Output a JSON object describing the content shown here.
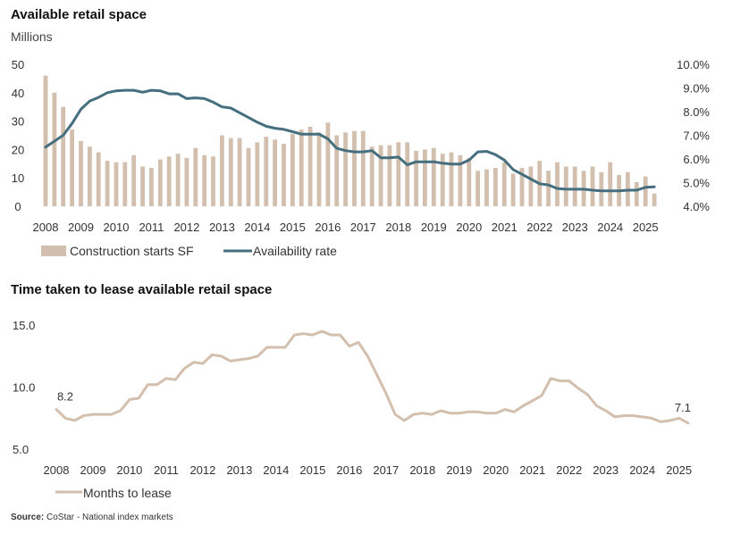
{
  "chart_data": [
    {
      "type": "bar+line",
      "title": "Available retail space",
      "ylabel_left": "Millions",
      "ylim_left": [
        0,
        50
      ],
      "yticks_left": [
        "50",
        "40",
        "30",
        "20",
        "10",
        "0"
      ],
      "ylim_right": [
        4.0,
        10.0
      ],
      "yticks_right": [
        "10.0%",
        "9.0%",
        "8.0%",
        "7.0%",
        "6.0%",
        "5.0%",
        "4.0%"
      ],
      "x_tick_labels": [
        "2008",
        "2009",
        "2010",
        "2011",
        "2012",
        "2013",
        "2014",
        "2015",
        "2016",
        "2017",
        "2018",
        "2019",
        "2020",
        "2021",
        "2022",
        "2023",
        "2024",
        "2025"
      ],
      "x_range": [
        2008.0,
        2025.35
      ],
      "series": [
        {
          "name": "Construction starts SF",
          "kind": "bar",
          "color": "#d3bfae",
          "x": [
            2008.0,
            2008.25,
            2008.5,
            2008.75,
            2009.0,
            2009.25,
            2009.5,
            2009.75,
            2010.0,
            2010.25,
            2010.5,
            2010.75,
            2011.0,
            2011.25,
            2011.5,
            2011.75,
            2012.0,
            2012.25,
            2012.5,
            2012.75,
            2013.0,
            2013.25,
            2013.5,
            2013.75,
            2014.0,
            2014.25,
            2014.5,
            2014.75,
            2015.0,
            2015.25,
            2015.5,
            2015.75,
            2016.0,
            2016.25,
            2016.5,
            2016.75,
            2017.0,
            2017.25,
            2017.5,
            2017.75,
            2018.0,
            2018.25,
            2018.5,
            2018.75,
            2019.0,
            2019.25,
            2019.5,
            2019.75,
            2020.0,
            2020.25,
            2020.5,
            2020.75,
            2021.0,
            2021.25,
            2021.5,
            2021.75,
            2022.0,
            2022.25,
            2022.5,
            2022.75,
            2023.0,
            2023.25,
            2023.5,
            2023.75,
            2024.0,
            2024.25,
            2024.5,
            2024.75,
            2025.0,
            2025.25
          ],
          "values": [
            46,
            40,
            35,
            27,
            23,
            21,
            19,
            16,
            15.5,
            15.5,
            18,
            14,
            13.5,
            16.5,
            17.5,
            18.5,
            17,
            20.5,
            18,
            17.5,
            25,
            24,
            24,
            20.5,
            22.5,
            24.5,
            23.5,
            22,
            25.5,
            27,
            28,
            26,
            29.5,
            25,
            26,
            26.5,
            26.5,
            21,
            21.5,
            21.5,
            22.5,
            22.5,
            19.5,
            20,
            20.5,
            18.5,
            19,
            18,
            17,
            12.5,
            13,
            13.5,
            15.5,
            11.5,
            13.5,
            14,
            16,
            12.5,
            15.5,
            14,
            14,
            12.5,
            14,
            12,
            15.5,
            11,
            12,
            8.5,
            10.5,
            4.5
          ]
        },
        {
          "name": "Availability rate",
          "kind": "line",
          "color": "#456f7f",
          "x": [
            2008.0,
            2008.25,
            2008.5,
            2008.75,
            2009.0,
            2009.25,
            2009.5,
            2009.75,
            2010.0,
            2010.25,
            2010.5,
            2010.75,
            2011.0,
            2011.25,
            2011.5,
            2011.75,
            2012.0,
            2012.25,
            2012.5,
            2012.75,
            2013.0,
            2013.25,
            2013.5,
            2013.75,
            2014.0,
            2014.25,
            2014.5,
            2014.75,
            2015.0,
            2015.25,
            2015.5,
            2015.75,
            2016.0,
            2016.25,
            2016.5,
            2016.75,
            2017.0,
            2017.25,
            2017.5,
            2017.75,
            2018.0,
            2018.25,
            2018.5,
            2018.75,
            2019.0,
            2019.25,
            2019.5,
            2019.75,
            2020.0,
            2020.25,
            2020.5,
            2020.75,
            2021.0,
            2021.25,
            2021.5,
            2021.75,
            2022.0,
            2022.25,
            2022.5,
            2022.75,
            2023.0,
            2023.25,
            2023.5,
            2023.75,
            2024.0,
            2024.25,
            2024.5,
            2024.75,
            2025.0,
            2025.25
          ],
          "values": [
            6.5,
            6.75,
            7.0,
            7.5,
            8.1,
            8.45,
            8.6,
            8.8,
            8.88,
            8.9,
            8.9,
            8.82,
            8.9,
            8.88,
            8.75,
            8.75,
            8.55,
            8.58,
            8.55,
            8.4,
            8.2,
            8.15,
            7.95,
            7.75,
            7.55,
            7.38,
            7.3,
            7.25,
            7.15,
            7.05,
            7.05,
            7.05,
            6.85,
            6.45,
            6.35,
            6.3,
            6.3,
            6.35,
            6.05,
            6.05,
            6.08,
            5.75,
            5.88,
            5.88,
            5.88,
            5.82,
            5.78,
            5.78,
            5.95,
            6.3,
            6.32,
            6.18,
            5.95,
            5.55,
            5.35,
            5.15,
            4.95,
            4.9,
            4.75,
            4.72,
            4.72,
            4.72,
            4.68,
            4.65,
            4.65,
            4.65,
            4.68,
            4.68,
            4.8,
            4.82
          ]
        }
      ],
      "legend": [
        "Construction starts SF",
        "Availability rate"
      ],
      "legend_position": "bottom-left"
    },
    {
      "type": "line",
      "title": "Time taken to lease available retail space",
      "ylim": [
        5.0,
        15.0
      ],
      "yticks": [
        "15.0",
        "10.0",
        "5.0"
      ],
      "x_tick_labels": [
        "2008",
        "2009",
        "2010",
        "2011",
        "2012",
        "2013",
        "2014",
        "2015",
        "2016",
        "2017",
        "2018",
        "2019",
        "2020",
        "2021",
        "2022",
        "2023",
        "2024",
        "2025"
      ],
      "x_range": [
        2008.0,
        2025.35
      ],
      "series": [
        {
          "name": "Months to lease",
          "color": "#d3bfae",
          "x": [
            2008.0,
            2008.25,
            2008.5,
            2008.75,
            2009.0,
            2009.25,
            2009.5,
            2009.75,
            2010.0,
            2010.25,
            2010.5,
            2010.75,
            2011.0,
            2011.25,
            2011.5,
            2011.75,
            2012.0,
            2012.25,
            2012.5,
            2012.75,
            2013.0,
            2013.25,
            2013.5,
            2013.75,
            2014.0,
            2014.25,
            2014.5,
            2014.75,
            2015.0,
            2015.25,
            2015.5,
            2015.75,
            2016.0,
            2016.25,
            2016.5,
            2016.75,
            2017.0,
            2017.25,
            2017.5,
            2017.75,
            2018.0,
            2018.25,
            2018.5,
            2018.75,
            2019.0,
            2019.25,
            2019.5,
            2019.75,
            2020.0,
            2020.25,
            2020.5,
            2020.75,
            2021.0,
            2021.25,
            2021.5,
            2021.75,
            2022.0,
            2022.25,
            2022.5,
            2022.75,
            2023.0,
            2023.25,
            2023.5,
            2023.75,
            2024.0,
            2024.25,
            2024.5,
            2024.75,
            2025.0,
            2025.25
          ],
          "values": [
            8.2,
            7.5,
            7.3,
            7.7,
            7.8,
            7.8,
            7.8,
            8.1,
            9.0,
            9.1,
            10.2,
            10.2,
            10.7,
            10.6,
            11.5,
            12.0,
            11.9,
            12.6,
            12.5,
            12.1,
            12.2,
            12.3,
            12.5,
            13.2,
            13.2,
            13.2,
            14.2,
            14.3,
            14.2,
            14.5,
            14.2,
            14.2,
            13.3,
            13.6,
            12.5,
            11.0,
            9.5,
            7.8,
            7.3,
            7.8,
            7.9,
            7.8,
            8.1,
            7.9,
            7.9,
            8.0,
            8.0,
            7.9,
            7.9,
            8.2,
            8.0,
            8.5,
            8.9,
            9.3,
            10.7,
            10.5,
            10.5,
            9.9,
            9.4,
            8.5,
            8.1,
            7.6,
            7.7,
            7.7,
            7.6,
            7.5,
            7.2,
            7.3,
            7.5,
            7.1
          ]
        }
      ],
      "annotations": [
        {
          "x": 2008.0,
          "text": "8.2"
        },
        {
          "x": 2025.25,
          "text": "7.1"
        }
      ],
      "legend": [
        "Months to lease"
      ],
      "legend_position": "bottom-left"
    }
  ],
  "source": {
    "label": "Source:",
    "text": " CoStar - National index markets"
  }
}
